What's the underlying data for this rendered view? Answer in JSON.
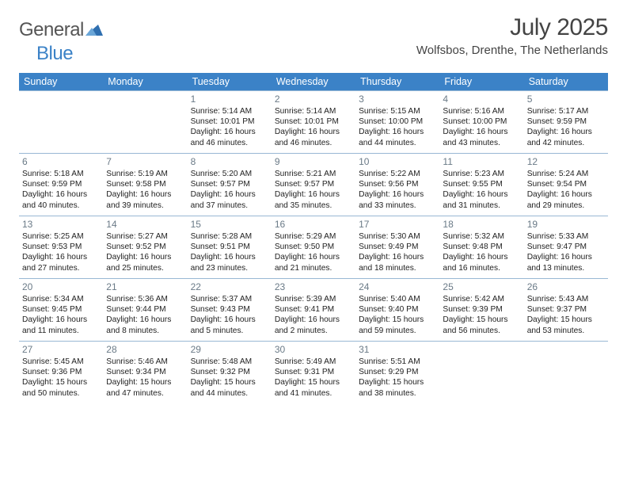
{
  "brand": {
    "text1": "General",
    "text2": "Blue"
  },
  "title": "July 2025",
  "location": "Wolfsbos, Drenthe, The Netherlands",
  "header_bg": "#3b82c7",
  "border_color": "#99b8d4",
  "text_color": "#222222",
  "daynum_color": "#6a7a87",
  "background_color": "#ffffff",
  "font": {
    "title_size": 30,
    "location_size": 15,
    "dow_size": 12.5,
    "cell_size": 10.2,
    "daynum_size": 12
  },
  "days_of_week": [
    "Sunday",
    "Monday",
    "Tuesday",
    "Wednesday",
    "Thursday",
    "Friday",
    "Saturday"
  ],
  "weeks": [
    [
      {
        "n": "",
        "sr": "",
        "ss": "",
        "dl": ""
      },
      {
        "n": "",
        "sr": "",
        "ss": "",
        "dl": ""
      },
      {
        "n": "1",
        "sr": "5:14 AM",
        "ss": "10:01 PM",
        "dl": "16 hours and 46 minutes."
      },
      {
        "n": "2",
        "sr": "5:14 AM",
        "ss": "10:01 PM",
        "dl": "16 hours and 46 minutes."
      },
      {
        "n": "3",
        "sr": "5:15 AM",
        "ss": "10:00 PM",
        "dl": "16 hours and 44 minutes."
      },
      {
        "n": "4",
        "sr": "5:16 AM",
        "ss": "10:00 PM",
        "dl": "16 hours and 43 minutes."
      },
      {
        "n": "5",
        "sr": "5:17 AM",
        "ss": "9:59 PM",
        "dl": "16 hours and 42 minutes."
      }
    ],
    [
      {
        "n": "6",
        "sr": "5:18 AM",
        "ss": "9:59 PM",
        "dl": "16 hours and 40 minutes."
      },
      {
        "n": "7",
        "sr": "5:19 AM",
        "ss": "9:58 PM",
        "dl": "16 hours and 39 minutes."
      },
      {
        "n": "8",
        "sr": "5:20 AM",
        "ss": "9:57 PM",
        "dl": "16 hours and 37 minutes."
      },
      {
        "n": "9",
        "sr": "5:21 AM",
        "ss": "9:57 PM",
        "dl": "16 hours and 35 minutes."
      },
      {
        "n": "10",
        "sr": "5:22 AM",
        "ss": "9:56 PM",
        "dl": "16 hours and 33 minutes."
      },
      {
        "n": "11",
        "sr": "5:23 AM",
        "ss": "9:55 PM",
        "dl": "16 hours and 31 minutes."
      },
      {
        "n": "12",
        "sr": "5:24 AM",
        "ss": "9:54 PM",
        "dl": "16 hours and 29 minutes."
      }
    ],
    [
      {
        "n": "13",
        "sr": "5:25 AM",
        "ss": "9:53 PM",
        "dl": "16 hours and 27 minutes."
      },
      {
        "n": "14",
        "sr": "5:27 AM",
        "ss": "9:52 PM",
        "dl": "16 hours and 25 minutes."
      },
      {
        "n": "15",
        "sr": "5:28 AM",
        "ss": "9:51 PM",
        "dl": "16 hours and 23 minutes."
      },
      {
        "n": "16",
        "sr": "5:29 AM",
        "ss": "9:50 PM",
        "dl": "16 hours and 21 minutes."
      },
      {
        "n": "17",
        "sr": "5:30 AM",
        "ss": "9:49 PM",
        "dl": "16 hours and 18 minutes."
      },
      {
        "n": "18",
        "sr": "5:32 AM",
        "ss": "9:48 PM",
        "dl": "16 hours and 16 minutes."
      },
      {
        "n": "19",
        "sr": "5:33 AM",
        "ss": "9:47 PM",
        "dl": "16 hours and 13 minutes."
      }
    ],
    [
      {
        "n": "20",
        "sr": "5:34 AM",
        "ss": "9:45 PM",
        "dl": "16 hours and 11 minutes."
      },
      {
        "n": "21",
        "sr": "5:36 AM",
        "ss": "9:44 PM",
        "dl": "16 hours and 8 minutes."
      },
      {
        "n": "22",
        "sr": "5:37 AM",
        "ss": "9:43 PM",
        "dl": "16 hours and 5 minutes."
      },
      {
        "n": "23",
        "sr": "5:39 AM",
        "ss": "9:41 PM",
        "dl": "16 hours and 2 minutes."
      },
      {
        "n": "24",
        "sr": "5:40 AM",
        "ss": "9:40 PM",
        "dl": "15 hours and 59 minutes."
      },
      {
        "n": "25",
        "sr": "5:42 AM",
        "ss": "9:39 PM",
        "dl": "15 hours and 56 minutes."
      },
      {
        "n": "26",
        "sr": "5:43 AM",
        "ss": "9:37 PM",
        "dl": "15 hours and 53 minutes."
      }
    ],
    [
      {
        "n": "27",
        "sr": "5:45 AM",
        "ss": "9:36 PM",
        "dl": "15 hours and 50 minutes."
      },
      {
        "n": "28",
        "sr": "5:46 AM",
        "ss": "9:34 PM",
        "dl": "15 hours and 47 minutes."
      },
      {
        "n": "29",
        "sr": "5:48 AM",
        "ss": "9:32 PM",
        "dl": "15 hours and 44 minutes."
      },
      {
        "n": "30",
        "sr": "5:49 AM",
        "ss": "9:31 PM",
        "dl": "15 hours and 41 minutes."
      },
      {
        "n": "31",
        "sr": "5:51 AM",
        "ss": "9:29 PM",
        "dl": "15 hours and 38 minutes."
      },
      {
        "n": "",
        "sr": "",
        "ss": "",
        "dl": ""
      },
      {
        "n": "",
        "sr": "",
        "ss": "",
        "dl": ""
      }
    ]
  ],
  "labels": {
    "sunrise": "Sunrise: ",
    "sunset": "Sunset: ",
    "daylight": "Daylight: "
  }
}
